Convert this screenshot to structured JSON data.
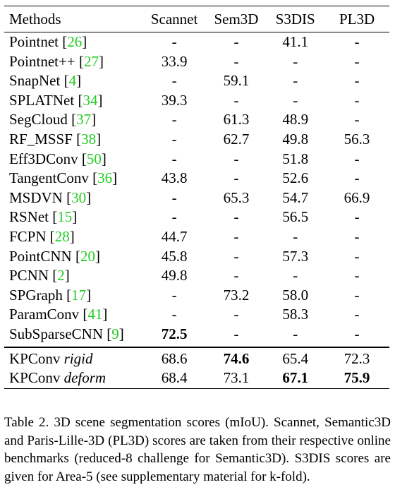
{
  "table": {
    "columns": [
      "Methods",
      "Scannet",
      "Sem3D",
      "S3DIS",
      "PL3D"
    ],
    "rows": [
      {
        "name": "Pointnet ",
        "ref": "26",
        "scannet": "-",
        "sem3d": "-",
        "s3dis": "41.1",
        "pl3d": "-"
      },
      {
        "name": "Pointnet++ ",
        "ref": "27",
        "scannet": "33.9",
        "sem3d": "-",
        "s3dis": "-",
        "pl3d": "-"
      },
      {
        "name": "SnapNet ",
        "ref": "4",
        "scannet": "-",
        "sem3d": "59.1",
        "s3dis": "-",
        "pl3d": "-"
      },
      {
        "name": "SPLATNet ",
        "ref": "34",
        "scannet": "39.3",
        "sem3d": "-",
        "s3dis": "-",
        "pl3d": "-"
      },
      {
        "name": "SegCloud ",
        "ref": "37",
        "scannet": "-",
        "sem3d": "61.3",
        "s3dis": "48.9",
        "pl3d": "-"
      },
      {
        "name": "RF_MSSF ",
        "ref": "38",
        "scannet": "-",
        "sem3d": "62.7",
        "s3dis": "49.8",
        "pl3d": "56.3"
      },
      {
        "name": "Eff3DConv ",
        "ref": "50",
        "scannet": "-",
        "sem3d": "-",
        "s3dis": "51.8",
        "pl3d": "-"
      },
      {
        "name": "TangentConv ",
        "ref": "36",
        "scannet": "43.8",
        "sem3d": "-",
        "s3dis": "52.6",
        "pl3d": "-"
      },
      {
        "name": "MSDVN ",
        "ref": "30",
        "scannet": "-",
        "sem3d": "65.3",
        "s3dis": "54.7",
        "pl3d": "66.9"
      },
      {
        "name": "RSNet ",
        "ref": "15",
        "scannet": "-",
        "sem3d": "-",
        "s3dis": "56.5",
        "pl3d": "-"
      },
      {
        "name": "FCPN ",
        "ref": "28",
        "scannet": "44.7",
        "sem3d": "-",
        "s3dis": "-",
        "pl3d": "-"
      },
      {
        "name": "PointCNN ",
        "ref": "20",
        "scannet": "45.8",
        "sem3d": "-",
        "s3dis": "57.3",
        "pl3d": "-"
      },
      {
        "name": "PCNN ",
        "ref": "2",
        "scannet": "49.8",
        "sem3d": "-",
        "s3dis": "-",
        "pl3d": "-"
      },
      {
        "name": "SPGraph ",
        "ref": "17",
        "scannet": "-",
        "sem3d": "73.2",
        "s3dis": "58.0",
        "pl3d": "-"
      },
      {
        "name": "ParamConv ",
        "ref": "41",
        "scannet": "-",
        "sem3d": "-",
        "s3dis": "58.3",
        "pl3d": "-"
      },
      {
        "name": "SubSparseCNN ",
        "ref": "9",
        "scannet": "72.5",
        "sem3d": "-",
        "s3dis": "-",
        "pl3d": "-"
      }
    ],
    "kpconv_rows": [
      {
        "name": "KPConv ",
        "variant": "rigid",
        "scannet": "68.6",
        "sem3d": "74.6",
        "s3dis": "65.4",
        "pl3d": "72.3"
      },
      {
        "name": "KPConv ",
        "variant": "deform",
        "scannet": "68.4",
        "sem3d": "73.1",
        "s3dis": "67.1",
        "pl3d": "75.9"
      }
    ],
    "bold_cells": [
      "main.15.scannet",
      "kp.0.sem3d",
      "kp.1.s3dis",
      "kp.1.pl3d"
    ]
  },
  "caption": "Table 2. 3D scene segmentation scores (mIoU). Scannet, Semantic3D and Paris-Lille-3D (PL3D) scores are taken from their respective online benchmarks (reduced-8 challenge for Semantic3D). S3DIS scores are given for Area-5 (see supplementary material for k-fold).",
  "colors": {
    "reference": "#22cc22",
    "text": "#000000"
  }
}
